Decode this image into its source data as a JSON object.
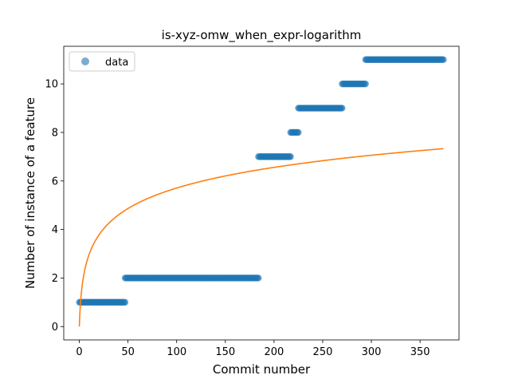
{
  "chart_data": {
    "type": "scatter",
    "title": "is-xyz-omw_when_expr-logarithm",
    "xlabel": "Commit number",
    "ylabel": "Number of instance of a feature",
    "xlim": [
      -16,
      390
    ],
    "ylim": [
      -0.55,
      11.55
    ],
    "xticks": [
      0,
      50,
      100,
      150,
      200,
      250,
      300,
      350
    ],
    "yticks": [
      0,
      2,
      4,
      6,
      8,
      10
    ],
    "grid": false,
    "legend": {
      "position": "top-left",
      "entries": [
        "data"
      ]
    },
    "colors": {
      "data": "#1f77b4",
      "fit": "#ff7f0e"
    },
    "series": [
      {
        "name": "data",
        "kind": "scatter",
        "segments": [
          {
            "x_from": 0,
            "x_to": 47,
            "y": 1
          },
          {
            "x_from": 47,
            "x_to": 184,
            "y": 2
          },
          {
            "x_from": 184,
            "x_to": 217,
            "y": 7
          },
          {
            "x_from": 217,
            "x_to": 225,
            "y": 8
          },
          {
            "x_from": 225,
            "x_to": 270,
            "y": 9
          },
          {
            "x_from": 270,
            "x_to": 294,
            "y": 10
          },
          {
            "x_from": 294,
            "x_to": 374,
            "y": 11
          }
        ]
      },
      {
        "kind": "line",
        "function": "y = 1.237 * ln(x + 1)",
        "x_range": [
          0,
          374
        ]
      }
    ]
  }
}
